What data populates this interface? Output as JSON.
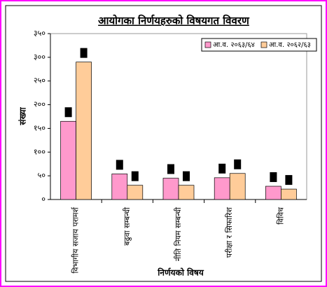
{
  "chart_data": {
    "type": "bar",
    "title": "आयोगका निर्णयहरुको विषयगत विवरण",
    "y_label": "संख्या",
    "x_label": "निर्णयको विषय",
    "categories": [
      "विभागीय सजाय परामर्श",
      "बढुवा सम्बन्धी",
      "नीति नियम सम्बन्धी",
      "परीक्षा र सिफारिश",
      "विविध"
    ],
    "series": [
      {
        "name": "आ.व. २०६३/६४",
        "color": "#ff99cc",
        "values": [
          165,
          54,
          45,
          46,
          28
        ]
      },
      {
        "name": "आ.व. २०६२/६३",
        "color": "#ffcc99",
        "values": [
          290,
          30,
          30,
          55,
          22
        ]
      }
    ],
    "ylim": [
      0,
      350
    ],
    "yticks": [
      {
        "value": 0,
        "label": "०"
      },
      {
        "value": 50,
        "label": "५०"
      },
      {
        "value": 100,
        "label": "१००"
      },
      {
        "value": 150,
        "label": "१५०"
      },
      {
        "value": 200,
        "label": "२००"
      },
      {
        "value": 250,
        "label": "२५०"
      },
      {
        "value": 300,
        "label": "३००"
      },
      {
        "value": 350,
        "label": "३५०"
      }
    ],
    "legend": "top-right"
  }
}
